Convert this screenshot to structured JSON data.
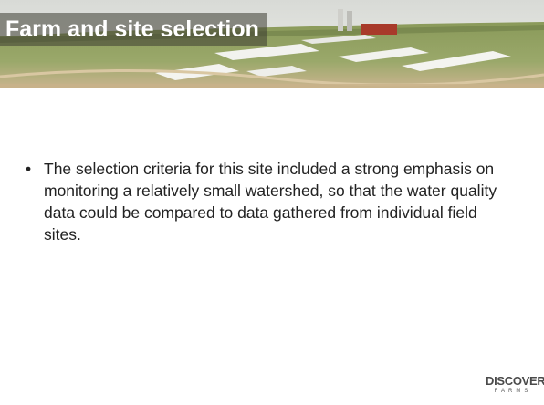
{
  "header": {
    "title": "Farm and site selection"
  },
  "body": {
    "bullets": [
      "The selection criteria for this site included a strong emphasis on monitoring a relatively small watershed, so that the water quality data could be compared to data gathered from individual field sites."
    ]
  },
  "logo": {
    "name": "DISCOVERY",
    "subtitle": "FARMS"
  }
}
